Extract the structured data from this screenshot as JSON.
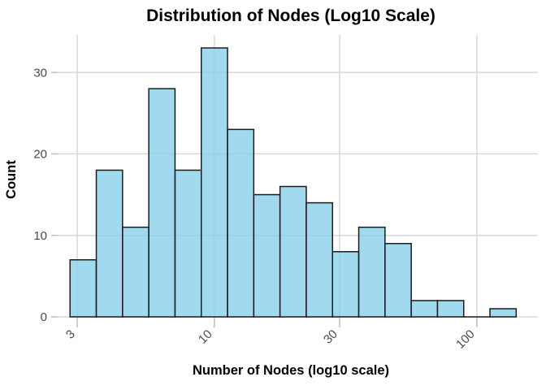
{
  "chart_data": {
    "type": "bar",
    "subtype": "histogram",
    "title": "Distribution of Nodes (Log10 Scale)",
    "xlabel": "Number of Nodes (log10 scale)",
    "ylabel": "Count",
    "x_scale": "log10",
    "bin_width_log10": 0.1,
    "bin_edges_log10": [
      0.45,
      0.55,
      0.65,
      0.75,
      0.85,
      0.95,
      1.05,
      1.15,
      1.25,
      1.35,
      1.45,
      1.55,
      1.65,
      1.75,
      1.85,
      1.95,
      2.05,
      2.15
    ],
    "counts": [
      7,
      18,
      11,
      28,
      18,
      33,
      23,
      15,
      16,
      14,
      8,
      11,
      9,
      2,
      2,
      0,
      1
    ],
    "x_tick_values": [
      3,
      10,
      30,
      100
    ],
    "x_tick_labels": [
      "3",
      "10",
      "30",
      "100"
    ],
    "y_tick_values": [
      0,
      10,
      20,
      30
    ],
    "y_tick_labels": [
      "0",
      "10",
      "20",
      "30"
    ],
    "ylim": [
      0,
      34.6
    ],
    "xlim_log10": [
      0.4,
      2.24
    ],
    "grid": true,
    "legend": "none",
    "colors": {
      "background": "#ffffff",
      "bar_fill": "#87CEEB",
      "bar_fill_opacity": 0.78,
      "bar_stroke": "#1c1c1c",
      "gridline": "#d8d8d8",
      "tick_mark": "#bdbdbd",
      "tick_label": "#4a4a4a",
      "title_color": "#000000"
    }
  }
}
